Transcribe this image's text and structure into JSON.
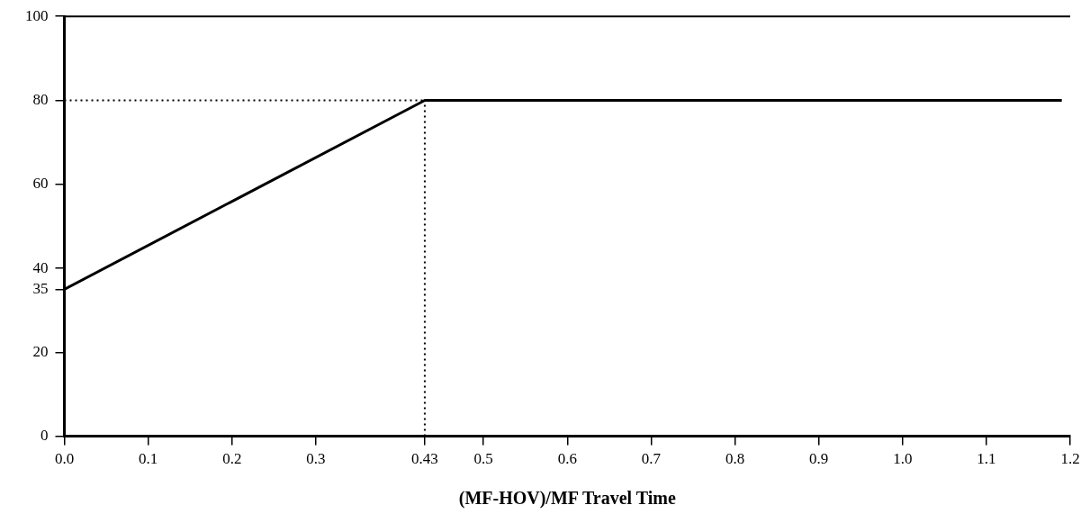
{
  "chart_data": {
    "type": "line",
    "xlabel": "(MF-HOV)/MF Travel Time",
    "x": [
      0,
      0.43,
      1.19
    ],
    "series": [
      {
        "color": "#000000",
        "values": [
          35,
          80,
          80
        ]
      }
    ],
    "xlim": [
      0,
      1.2
    ],
    "ylim": [
      0,
      100
    ],
    "xticks": [
      {
        "value": 0,
        "label": "0.0"
      },
      0.1,
      0.2,
      0.3,
      0.43,
      0.5,
      0.6,
      0.7,
      0.8,
      0.9,
      {
        "value": 1,
        "label": "1.0"
      },
      1.1,
      1.2
    ],
    "yticks": [
      0,
      20,
      35,
      40,
      60,
      80,
      100
    ],
    "ref_lines": [
      {
        "axis": "y",
        "value": 80,
        "line_style": "dotted"
      },
      {
        "axis": "x",
        "value": 0.43,
        "line_style": "dotted"
      }
    ],
    "grid": false,
    "legend": false,
    "marker": "none",
    "line_style": "solid"
  }
}
